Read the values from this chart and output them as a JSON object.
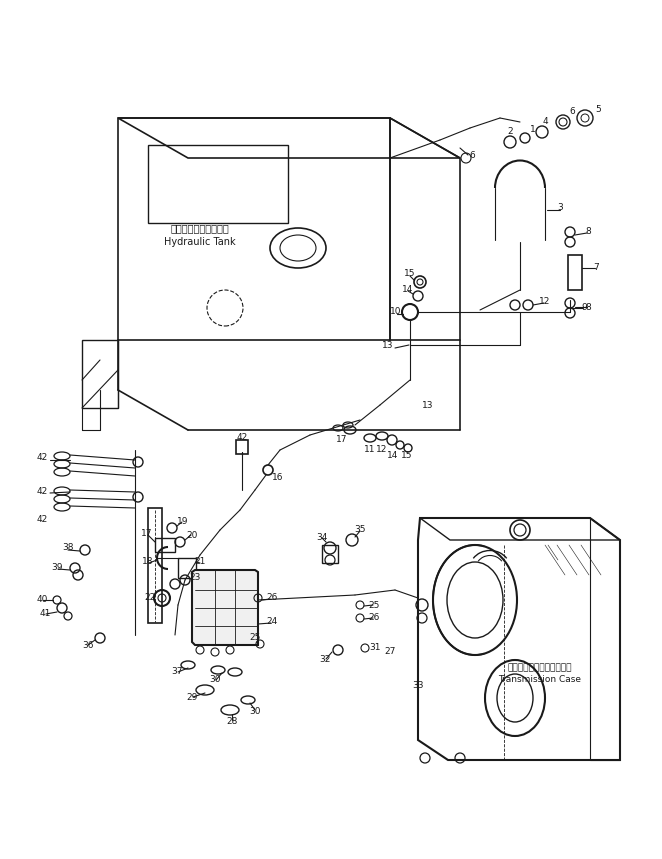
{
  "bg_color": "#ffffff",
  "fig_width": 6.62,
  "fig_height": 8.59,
  "dpi": 100,
  "tank_label_jp": "ハイドロリックタンク",
  "tank_label_en": "Hydraulic Tank",
  "transmission_label_jp": "トランスミッションケース",
  "transmission_label_en": "Transmission Case",
  "lc": "#1a1a1a",
  "tc": "#1a1a1a",
  "fs": 7.0
}
